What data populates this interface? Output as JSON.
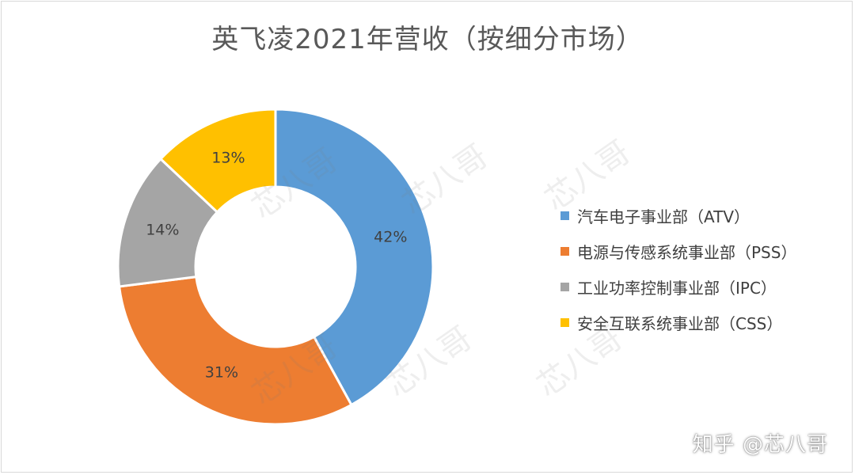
{
  "chart_data": {
    "type": "pie",
    "donut": true,
    "title": "英飞凌2021年营收（按细分市场）",
    "categories": [
      "汽车电子事业部（ATV）",
      "电源与传感系统事业部（PSS）",
      "工业功率控制事业部（IPC）",
      "安全互联系统事业部（CSS）"
    ],
    "values": [
      42,
      31,
      14,
      13
    ],
    "value_labels": [
      "42%",
      "31%",
      "14%",
      "13%"
    ],
    "colors": [
      "#5b9bd5",
      "#ed7d31",
      "#a5a5a5",
      "#ffc000"
    ],
    "legend_position": "right"
  },
  "watermarks": [
    "芯八哥",
    "芯八哥",
    "芯八哥",
    "芯八哥",
    "芯八哥",
    "芯八哥"
  ],
  "credit": "知乎 @芯八哥"
}
